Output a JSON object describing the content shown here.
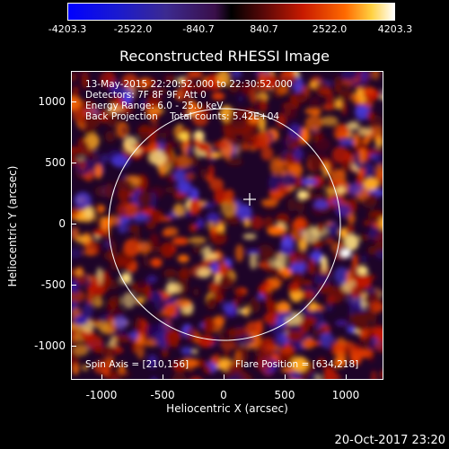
{
  "colorbar": {
    "tick_labels": [
      "-4203.3",
      "-2522.0",
      "-840.7",
      "840.7",
      "2522.0",
      "4203.3"
    ]
  },
  "title": "Reconstructed RHESSI Image",
  "info": {
    "line1": "13-May-2015 22:20:52.000 to 22:30:52.000",
    "line2": "Detectors: 7F 8F 9F, Att 0",
    "line3": "Energy Range: 6.0 - 25.0 keV",
    "line4": "Back Projection    Total counts: 5.42E+04",
    "spin_axis": "Spin Axis = [210,156]",
    "flare_position": "Flare Position = [634,218]"
  },
  "axes": {
    "xlabel": "Heliocentric X (arcsec)",
    "ylabel": "Heliocentric Y (arcsec)",
    "x_ticks": [
      "-1000",
      "-500",
      "0",
      "500",
      "1000"
    ],
    "y_ticks": [
      "1000",
      "500",
      "0",
      "-500",
      "-1000"
    ]
  },
  "footer_date": "20-Oct-2017 23:20"
}
